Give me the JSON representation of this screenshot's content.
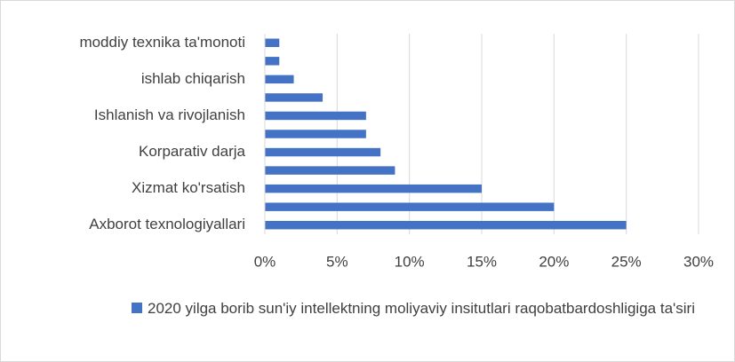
{
  "chart_data": {
    "type": "hbar",
    "categories": [
      "Axborot texnologiyallari",
      null,
      "Xizmat ko'rsatish",
      null,
      "Korparativ darja",
      null,
      "Ishlanish va rivojlanish ",
      null,
      "ishlab chiqarish",
      null,
      "moddiy texnika ta'monoti"
    ],
    "series": [
      {
        "name": "2020 yilga borib sun'iy intellektning moliyaviy insitutlari raqobatbardoshligiga ta'siri",
        "color": "#4472c4",
        "values": [
          25,
          20,
          15,
          9,
          8,
          7,
          7,
          4,
          2,
          1,
          1
        ]
      }
    ],
    "xlim": [
      0,
      30
    ],
    "xticks": [
      {
        "value": 0,
        "label": "0%"
      },
      {
        "value": 5,
        "label": "5%"
      },
      {
        "value": 10,
        "label": "10%"
      },
      {
        "value": 15,
        "label": "15%"
      },
      {
        "value": 20,
        "label": "20%"
      },
      {
        "value": 25,
        "label": "25%"
      },
      {
        "value": 30,
        "label": "30%"
      }
    ],
    "grid": true,
    "legend": "bottom"
  }
}
